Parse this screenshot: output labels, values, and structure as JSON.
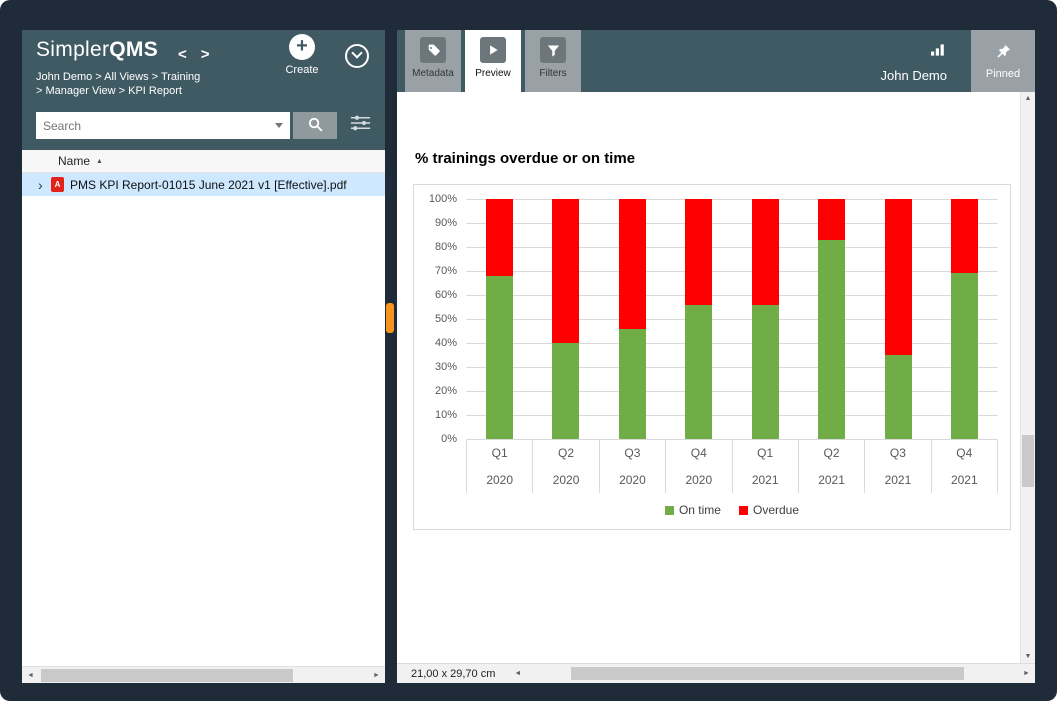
{
  "app": {
    "name_light": "Simpler",
    "name_bold": "QMS"
  },
  "left_panel": {
    "breadcrumb_line1": "John Demo > All Views > Training",
    "breadcrumb_line2": "> Manager View > KPI Report",
    "create_label": "Create",
    "search_placeholder": "Search",
    "list": {
      "name_header": "Name",
      "items": [
        {
          "name": "PMS KPI Report-01015 June 2021 v1 [Effective].pdf",
          "selected": true
        }
      ]
    }
  },
  "right_panel": {
    "tabs": [
      {
        "label": "Metadata",
        "active": false
      },
      {
        "label": "Preview",
        "active": true
      },
      {
        "label": "Filters",
        "active": false
      }
    ],
    "user_name": "John Demo",
    "pinned_label": "Pinned",
    "page_size": "21,00 x 29,70 cm"
  },
  "icons": {
    "back": "<",
    "forward": ">",
    "plus": "+",
    "sort_asc": "▲",
    "expander": "›",
    "pdf_badge": "A",
    "scroll_left": "◄",
    "scroll_right": "►",
    "scroll_up": "▲",
    "scroll_down": "▼"
  },
  "colors": {
    "header_teal": "#405a64",
    "accent_orange": "#f7941e",
    "selection_blue": "#cde8ff",
    "on_time_green": "#70ad47",
    "overdue_red": "#ff0000"
  },
  "chart_data": {
    "type": "bar",
    "stacked": true,
    "percent_stacked": true,
    "title": "% trainings overdue or on time",
    "categories": [
      "Q1",
      "Q2",
      "Q3",
      "Q4",
      "Q1",
      "Q2",
      "Q3",
      "Q4"
    ],
    "category_years": [
      "2020",
      "2020",
      "2020",
      "2020",
      "2021",
      "2021",
      "2021",
      "2021"
    ],
    "series": [
      {
        "name": "On time",
        "color": "#70ad47",
        "values": [
          68,
          40,
          46,
          56,
          56,
          83,
          35,
          69
        ]
      },
      {
        "name": "Overdue",
        "color": "#ff0000",
        "values": [
          32,
          60,
          54,
          44,
          44,
          17,
          65,
          31
        ]
      }
    ],
    "ylim": [
      0,
      100
    ],
    "ytick_step": 10,
    "ylabels": [
      "100%",
      "90%",
      "80%",
      "70%",
      "60%",
      "50%",
      "40%",
      "30%",
      "20%",
      "10%",
      "0%"
    ],
    "grid": true,
    "legend_position": "bottom"
  }
}
